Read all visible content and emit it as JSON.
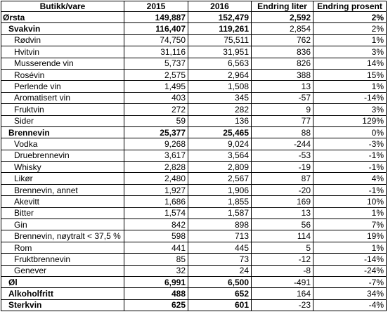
{
  "table": {
    "headers": [
      "Butikk/vare",
      "2015",
      "2016",
      "Endring liter",
      "Endring prosent"
    ],
    "rows": [
      {
        "name": "Ørsta",
        "y2015": "149,887",
        "y2016": "152,479",
        "liter": "2,592",
        "pct": "2%",
        "level": "lvl0"
      },
      {
        "name": "Svakvin",
        "y2015": "116,407",
        "y2016": "119,261",
        "liter": "2,854",
        "pct": "2%",
        "level": "lvl1"
      },
      {
        "name": "Rødvin",
        "y2015": "74,750",
        "y2016": "75,511",
        "liter": "762",
        "pct": "1%",
        "level": "lvl2"
      },
      {
        "name": "Hvitvin",
        "y2015": "31,116",
        "y2016": "31,951",
        "liter": "836",
        "pct": "3%",
        "level": "lvl2"
      },
      {
        "name": "Musserende vin",
        "y2015": "5,737",
        "y2016": "6,563",
        "liter": "826",
        "pct": "14%",
        "level": "lvl2"
      },
      {
        "name": "Rosévin",
        "y2015": "2,575",
        "y2016": "2,964",
        "liter": "388",
        "pct": "15%",
        "level": "lvl2"
      },
      {
        "name": "Perlende vin",
        "y2015": "1,495",
        "y2016": "1,508",
        "liter": "13",
        "pct": "1%",
        "level": "lvl2"
      },
      {
        "name": "Aromatisert vin",
        "y2015": "403",
        "y2016": "345",
        "liter": "-57",
        "pct": "-14%",
        "level": "lvl2"
      },
      {
        "name": "Fruktvin",
        "y2015": "272",
        "y2016": "282",
        "liter": "9",
        "pct": "3%",
        "level": "lvl2"
      },
      {
        "name": "Sider",
        "y2015": "59",
        "y2016": "136",
        "liter": "77",
        "pct": "129%",
        "level": "lvl2"
      },
      {
        "name": "Brennevin",
        "y2015": "25,377",
        "y2016": "25,465",
        "liter": "88",
        "pct": "0%",
        "level": "lvl1"
      },
      {
        "name": "Vodka",
        "y2015": "9,268",
        "y2016": "9,024",
        "liter": "-244",
        "pct": "-3%",
        "level": "lvl2"
      },
      {
        "name": "Druebrennevin",
        "y2015": "3,617",
        "y2016": "3,564",
        "liter": "-53",
        "pct": "-1%",
        "level": "lvl2"
      },
      {
        "name": "Whisky",
        "y2015": "2,828",
        "y2016": "2,809",
        "liter": "-19",
        "pct": "-1%",
        "level": "lvl2"
      },
      {
        "name": "Likør",
        "y2015": "2,480",
        "y2016": "2,567",
        "liter": "87",
        "pct": "4%",
        "level": "lvl2"
      },
      {
        "name": "Brennevin, annet",
        "y2015": "1,927",
        "y2016": "1,906",
        "liter": "-20",
        "pct": "-1%",
        "level": "lvl2"
      },
      {
        "name": "Akevitt",
        "y2015": "1,686",
        "y2016": "1,855",
        "liter": "169",
        "pct": "10%",
        "level": "lvl2"
      },
      {
        "name": "Bitter",
        "y2015": "1,574",
        "y2016": "1,587",
        "liter": "13",
        "pct": "1%",
        "level": "lvl2"
      },
      {
        "name": "Gin",
        "y2015": "842",
        "y2016": "898",
        "liter": "56",
        "pct": "7%",
        "level": "lvl2"
      },
      {
        "name": "Brennevin, nøytralt < 37,5 %",
        "y2015": "598",
        "y2016": "713",
        "liter": "114",
        "pct": "19%",
        "level": "lvl2"
      },
      {
        "name": "Rom",
        "y2015": "441",
        "y2016": "445",
        "liter": "5",
        "pct": "1%",
        "level": "lvl2"
      },
      {
        "name": "Fruktbrennevin",
        "y2015": "85",
        "y2016": "73",
        "liter": "-12",
        "pct": "-14%",
        "level": "lvl2"
      },
      {
        "name": "Genever",
        "y2015": "32",
        "y2016": "24",
        "liter": "-8",
        "pct": "-24%",
        "level": "lvl2"
      },
      {
        "name": "Øl",
        "y2015": "6,991",
        "y2016": "6,500",
        "liter": "-491",
        "pct": "-7%",
        "level": "lvl1b"
      },
      {
        "name": "Alkoholfritt",
        "y2015": "488",
        "y2016": "652",
        "liter": "164",
        "pct": "34%",
        "level": "lvl1b"
      },
      {
        "name": "Sterkvin",
        "y2015": "625",
        "y2016": "601",
        "liter": "-23",
        "pct": "-4%",
        "level": "lvl1b"
      }
    ]
  }
}
